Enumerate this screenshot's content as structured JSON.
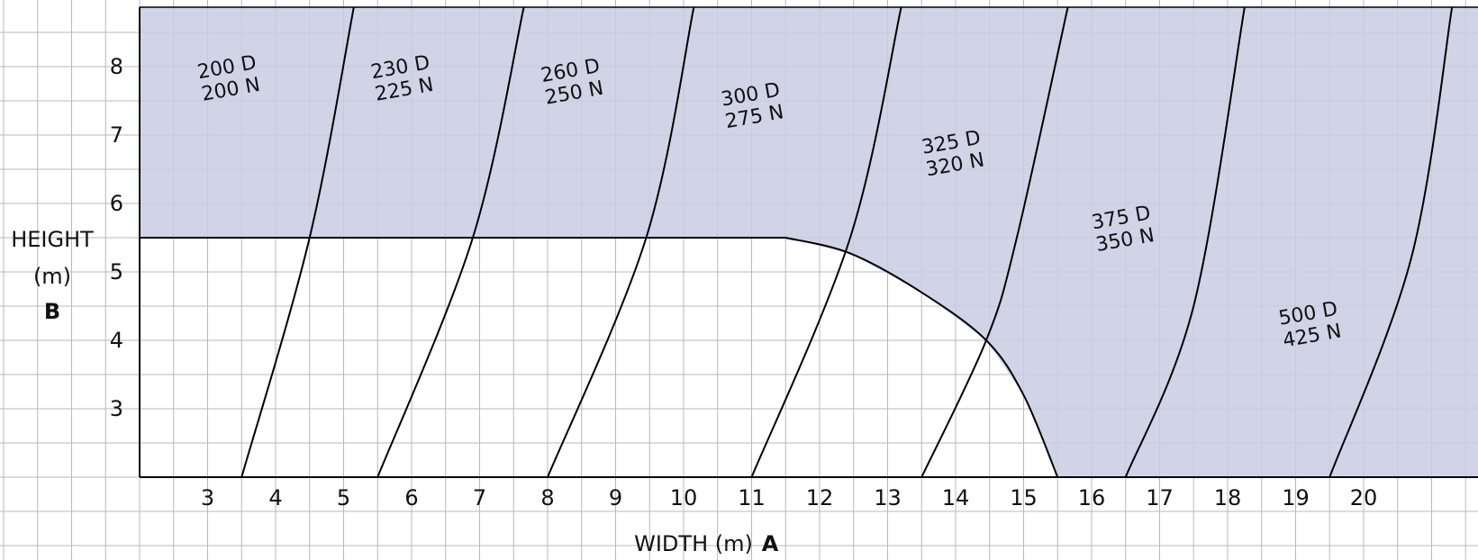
{
  "chart_data": {
    "type": "line",
    "xlabel": "WIDTH (m)",
    "xlabel_marker": "A",
    "ylabel_line1": "HEIGHT",
    "ylabel_line2": "(m)",
    "ylabel_marker": "B",
    "xlim": [
      2,
      21.5
    ],
    "ylim": [
      2,
      8.9
    ],
    "x_ticks": [
      "3",
      "4",
      "5",
      "6",
      "7",
      "8",
      "9",
      "10",
      "11",
      "12",
      "13",
      "14",
      "15",
      "16",
      "17",
      "18",
      "19",
      "20"
    ],
    "y_ticks": [
      "3",
      "4",
      "5",
      "6",
      "7",
      "8"
    ],
    "grid": true,
    "colors": {
      "shaded_region": "#c9cce3",
      "grid": "#b8b8b8",
      "lines": "#000000",
      "background": "#ffffff"
    },
    "boundary_lines": [
      {
        "points": [
          [
            3.5,
            2
          ],
          [
            4.5,
            5.5
          ],
          [
            5.15,
            8.9
          ]
        ]
      },
      {
        "points": [
          [
            5.5,
            2
          ],
          [
            6.9,
            5.5
          ],
          [
            7.65,
            8.9
          ]
        ]
      },
      {
        "points": [
          [
            8.0,
            2
          ],
          [
            9.45,
            5.5
          ],
          [
            10.15,
            8.9
          ]
        ]
      },
      {
        "points": [
          [
            11.0,
            2
          ],
          [
            12.45,
            5.5
          ],
          [
            13.2,
            8.9
          ]
        ]
      },
      {
        "points": [
          [
            13.5,
            2
          ],
          [
            14.45,
            4.0
          ],
          [
            14.9,
            5.5
          ],
          [
            15.65,
            8.9
          ]
        ]
      },
      {
        "points": [
          [
            16.5,
            2
          ],
          [
            17.5,
            4.5
          ],
          [
            18.25,
            8.9
          ]
        ]
      },
      {
        "points": [
          [
            19.5,
            2
          ],
          [
            20.7,
            5.2
          ],
          [
            21.3,
            8.9
          ]
        ]
      }
    ],
    "unshaded_region_boundary": [
      [
        2,
        5.5
      ],
      [
        11.5,
        5.5
      ],
      [
        12.45,
        5.27
      ],
      [
        13.5,
        4.7
      ],
      [
        14.45,
        4.0
      ],
      [
        15.0,
        3.2
      ],
      [
        15.5,
        2
      ]
    ],
    "zones": [
      {
        "line1": "200 D",
        "line2": "200 N",
        "x": 3.3,
        "y": 7.9
      },
      {
        "line1": "230 D",
        "line2": "225 N",
        "x": 5.85,
        "y": 7.9
      },
      {
        "line1": "260 D",
        "line2": "250 N",
        "x": 8.35,
        "y": 7.85
      },
      {
        "line1": "300 D",
        "line2": "275 N",
        "x": 11.0,
        "y": 7.5
      },
      {
        "line1": "325 D",
        "line2": "320 N",
        "x": 13.95,
        "y": 6.8
      },
      {
        "line1": "375 D",
        "line2": "350 N",
        "x": 16.45,
        "y": 5.7
      },
      {
        "line1": "500 D",
        "line2": "425 N",
        "x": 19.2,
        "y": 4.3
      }
    ]
  }
}
